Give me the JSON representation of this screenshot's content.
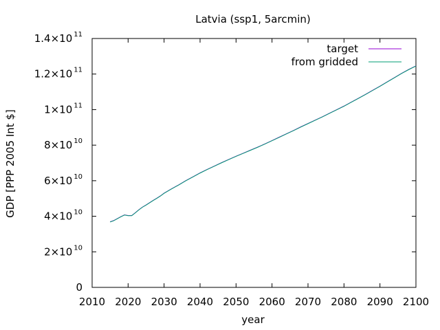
{
  "chart_data": {
    "type": "line",
    "title": "Latvia (ssp1, 5arcmin)",
    "xlabel": "year",
    "ylabel": "GDP [PPP 2005 Int $]",
    "xlim": [
      2010,
      2100
    ],
    "ylim": [
      0,
      140000000000
    ],
    "x_ticks": [
      {
        "value": 2010,
        "label": "2010"
      },
      {
        "value": 2020,
        "label": "2020"
      },
      {
        "value": 2030,
        "label": "2030"
      },
      {
        "value": 2040,
        "label": "2040"
      },
      {
        "value": 2050,
        "label": "2050"
      },
      {
        "value": 2060,
        "label": "2060"
      },
      {
        "value": 2070,
        "label": "2070"
      },
      {
        "value": 2080,
        "label": "2080"
      },
      {
        "value": 2090,
        "label": "2090"
      },
      {
        "value": 2100,
        "label": "2100"
      }
    ],
    "y_ticks": [
      {
        "value": 0,
        "mantissa": "0",
        "exponent": ""
      },
      {
        "value": 20000000000,
        "mantissa": "2×10",
        "exponent": "10"
      },
      {
        "value": 40000000000,
        "mantissa": "4×10",
        "exponent": "10"
      },
      {
        "value": 60000000000,
        "mantissa": "6×10",
        "exponent": "10"
      },
      {
        "value": 80000000000,
        "mantissa": "8×10",
        "exponent": "10"
      },
      {
        "value": 100000000000,
        "mantissa": "1×10",
        "exponent": "11"
      },
      {
        "value": 120000000000,
        "mantissa": "1.2×10",
        "exponent": "11"
      },
      {
        "value": 140000000000,
        "mantissa": "1.4×10",
        "exponent": "11"
      }
    ],
    "grid": false,
    "legend_position": "top-right",
    "x": [
      2015,
      2016,
      2017,
      2018,
      2019,
      2020,
      2021,
      2022,
      2023,
      2024,
      2025,
      2026,
      2027,
      2028,
      2029,
      2030,
      2032,
      2034,
      2036,
      2038,
      2040,
      2042,
      2044,
      2046,
      2048,
      2050,
      2052,
      2054,
      2056,
      2058,
      2060,
      2062,
      2064,
      2066,
      2068,
      2070,
      2072,
      2074,
      2076,
      2078,
      2080,
      2082,
      2084,
      2086,
      2088,
      2090,
      2092,
      2094,
      2096,
      2098,
      2100
    ],
    "series": [
      {
        "name": "target",
        "color": "#9400d3",
        "values": [
          36900000000,
          37600000000,
          38700000000,
          39800000000,
          40800000000,
          40400000000,
          40400000000,
          42000000000,
          43700000000,
          45200000000,
          46400000000,
          47700000000,
          49000000000,
          50200000000,
          51500000000,
          53000000000,
          55400000000,
          57600000000,
          60000000000,
          62200000000,
          64400000000,
          66400000000,
          68300000000,
          70200000000,
          72000000000,
          73800000000,
          75500000000,
          77200000000,
          78900000000,
          80700000000,
          82600000000,
          84500000000,
          86400000000,
          88300000000,
          90300000000,
          92200000000,
          94100000000,
          96000000000,
          98000000000,
          100000000000,
          102000000000,
          104200000000,
          106400000000,
          108600000000,
          110900000000,
          113200000000,
          115600000000,
          118000000000,
          120400000000,
          122600000000,
          124600000000
        ]
      },
      {
        "name": "from gridded",
        "color": "#009e73",
        "values": [
          36800000000,
          37500000000,
          38600000000,
          39700000000,
          40700000000,
          40300000000,
          40300000000,
          41900000000,
          43600000000,
          45100000000,
          46300000000,
          47600000000,
          48900000000,
          50100000000,
          51400000000,
          52900000000,
          55300000000,
          57500000000,
          59900000000,
          62100000000,
          64300000000,
          66300000000,
          68200000000,
          70100000000,
          71900000000,
          73700000000,
          75400000000,
          77100000000,
          78800000000,
          80600000000,
          82500000000,
          84400000000,
          86300000000,
          88200000000,
          90200000000,
          92100000000,
          94000000000,
          95900000000,
          97900000000,
          99900000000,
          101900000000,
          104100000000,
          106300000000,
          108500000000,
          110800000000,
          113100000000,
          115500000000,
          117900000000,
          120300000000,
          122500000000,
          124500000000
        ]
      }
    ]
  }
}
